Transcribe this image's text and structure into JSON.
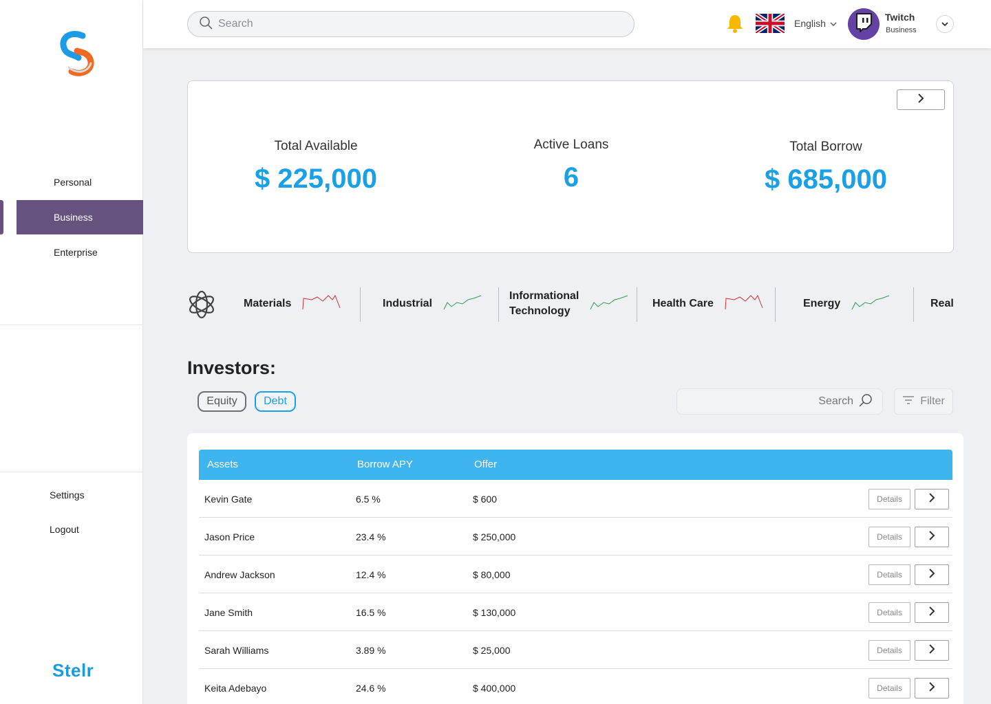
{
  "sidebar": {
    "nav": [
      {
        "label": "Personal",
        "active": false
      },
      {
        "label": "Business",
        "active": true
      },
      {
        "label": "Enterprise",
        "active": false
      }
    ],
    "settings_label": "Settings",
    "logout_label": "Logout",
    "brand": "Stelr"
  },
  "topbar": {
    "search_placeholder": "Search",
    "language": "English",
    "user_name": "Twitch",
    "user_role": "Business"
  },
  "stats": {
    "total_available_label": "Total Available",
    "total_available_value": "$ 225,000",
    "active_loans_label": "Active Loans",
    "active_loans_value": "6",
    "total_borrow_label": "Total Borrow",
    "total_borrow_value": "$ 685,000"
  },
  "sectors": [
    {
      "name_line1": "Materials",
      "name_line2": "",
      "trend": "down",
      "color": "#d32f2f"
    },
    {
      "name_line1": "Industrial",
      "name_line2": "",
      "trend": "up",
      "color": "#2e9e4f"
    },
    {
      "name_line1": "Informational",
      "name_line2": "Technology",
      "trend": "up",
      "color": "#2e9e4f"
    },
    {
      "name_line1": "Health Care",
      "name_line2": "",
      "trend": "down",
      "color": "#d32f2f"
    },
    {
      "name_line1": "Energy",
      "name_line2": "",
      "trend": "up",
      "color": "#2e9e4f"
    },
    {
      "name_line1": "Real",
      "name_line2": "",
      "trend": "none",
      "color": ""
    }
  ],
  "investors": {
    "title": "Investors:",
    "chip_equity": "Equity",
    "chip_debt": "Debt",
    "search_placeholder": "Search",
    "filter_label": "Filter"
  },
  "table": {
    "headers": [
      "Assets",
      "Borrow APY",
      "Offer"
    ],
    "details_label": "Details",
    "rows": [
      {
        "name": "Kevin Gate",
        "apy": "6.5 %",
        "offer": "$ 600"
      },
      {
        "name": "Jason Price",
        "apy": "23.4 %",
        "offer": "$ 250,000"
      },
      {
        "name": "Andrew Jackson",
        "apy": "12.4 %",
        "offer": "$ 80,000"
      },
      {
        "name": "Jane Smith",
        "apy": "16.5 %",
        "offer": "$ 130,000"
      },
      {
        "name": "Sarah Williams",
        "apy": "3.89 %",
        "offer": "$ 25,000"
      },
      {
        "name": "Keita Adebayo",
        "apy": "24.6 %",
        "offer": "$ 400,000"
      }
    ]
  },
  "colors": {
    "accent": "#1aa0e6",
    "nav_active": "#66527f",
    "table_header": "#3fb5f0",
    "trend_up": "#2e9e4f",
    "trend_down": "#d32f2f"
  }
}
